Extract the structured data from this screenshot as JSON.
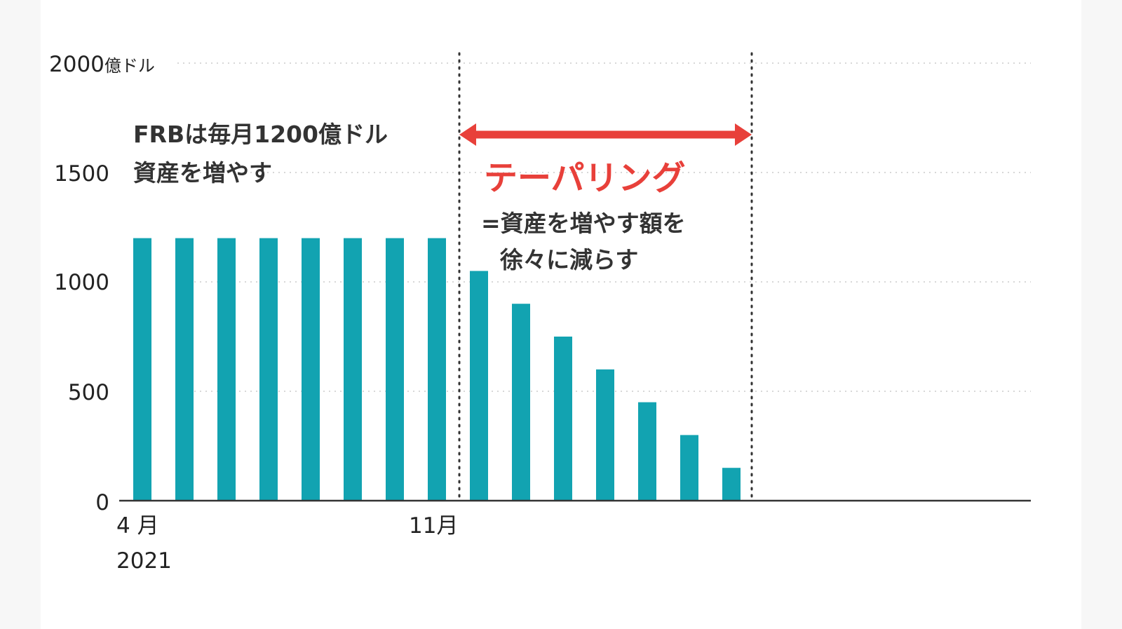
{
  "chart_data": {
    "type": "bar",
    "x_start_label": "4 月",
    "x_start_year": "2021",
    "x_mark_label": "11月",
    "values": [
      1200,
      1200,
      1200,
      1200,
      1200,
      1200,
      1200,
      1200,
      1050,
      900,
      750,
      600,
      450,
      300,
      150
    ],
    "ylim": [
      0,
      2000
    ],
    "y_ticks": [
      "0",
      "500",
      "1000",
      "1500",
      "2000"
    ],
    "y_unit": "億ドル",
    "grid": true,
    "taper_start_index": 8,
    "taper_end_index": 14
  },
  "annotations": {
    "frb_line1": "FRBは毎月1200億ドル",
    "frb_line2": "資産を増やす",
    "tapering_title": "テーパリング",
    "tapering_line1": "=資産を増やす額を",
    "tapering_line2": "徐々に減らす"
  },
  "colors": {
    "bar": "#12a3b1",
    "arrow": "#e8403a",
    "grid": "#cccccc",
    "axis": "#333333"
  }
}
